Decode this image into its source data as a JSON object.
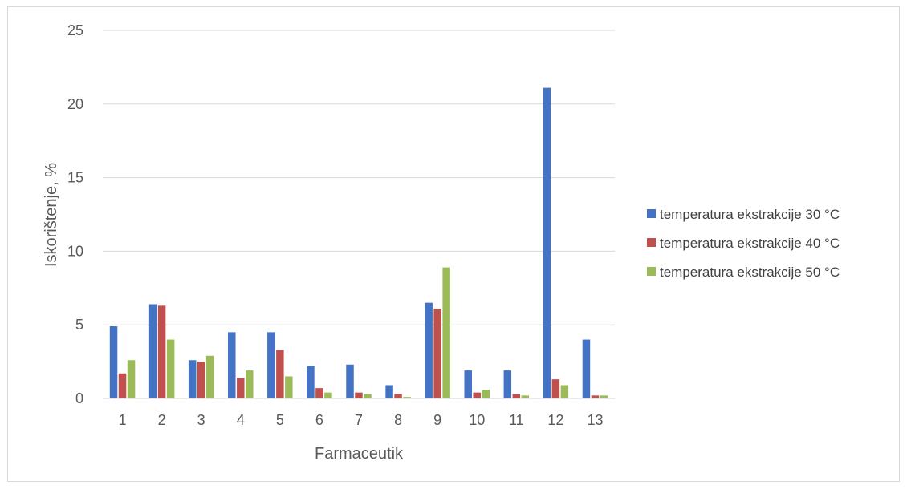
{
  "chart_data": {
    "type": "bar",
    "title": "",
    "xlabel": "Farmaceutik",
    "ylabel": "Iskorištenje, %",
    "ylim": [
      0,
      25
    ],
    "yticks": [
      0,
      5,
      10,
      15,
      20,
      25
    ],
    "grid": true,
    "legend_position": "right",
    "categories": [
      "1",
      "2",
      "3",
      "4",
      "5",
      "6",
      "7",
      "8",
      "9",
      "10",
      "11",
      "12",
      "13"
    ],
    "series": [
      {
        "name": "temperatura ekstrakcije 30 °C",
        "color": "#4472c4",
        "values": [
          4.9,
          6.4,
          2.6,
          4.5,
          4.5,
          2.2,
          2.3,
          0.9,
          6.5,
          1.9,
          1.9,
          21.1,
          4.0
        ]
      },
      {
        "name": "temperatura ekstrakcije 40 °C",
        "color": "#c0504d",
        "values": [
          1.7,
          6.3,
          2.5,
          1.4,
          3.3,
          0.7,
          0.4,
          0.3,
          6.1,
          0.4,
          0.3,
          1.3,
          0.2
        ]
      },
      {
        "name": "temperatura ekstrakcije 50 °C",
        "color": "#9bbb59",
        "values": [
          2.6,
          4.0,
          2.9,
          1.9,
          1.5,
          0.4,
          0.3,
          0.1,
          8.9,
          0.6,
          0.2,
          0.9,
          0.2
        ]
      }
    ]
  }
}
